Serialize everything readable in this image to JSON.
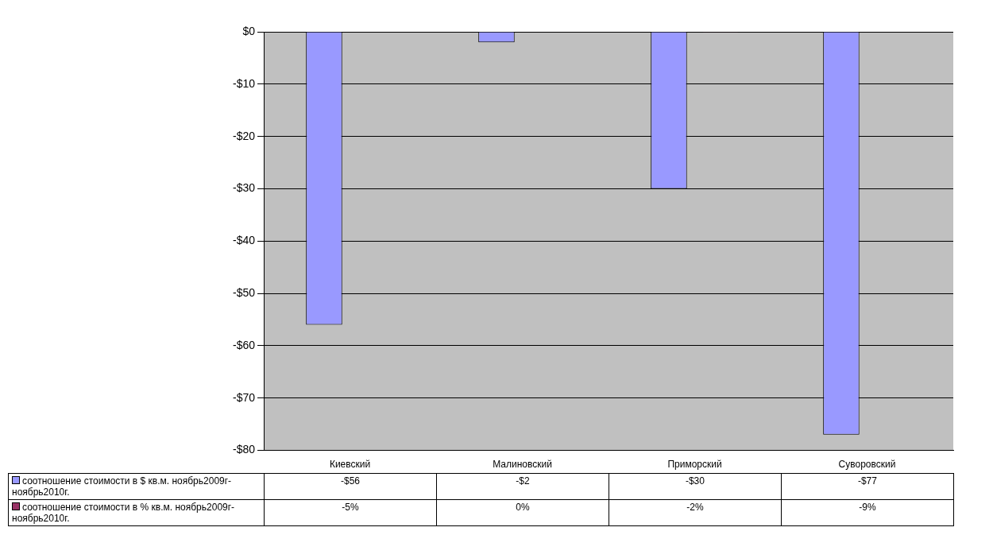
{
  "chart_data": {
    "type": "bar",
    "categories": [
      "Киевский",
      "Малиновский",
      "Приморский",
      "Суворовский"
    ],
    "series": [
      {
        "name": "соотношение стоимости в $ кв.м. ноябрь2009г-ноябрь2010г.",
        "color": "#9999ff",
        "values": [
          -56,
          -2,
          -30,
          -77
        ],
        "value_labels": [
          "-$56",
          "-$2",
          "-$30",
          "-$77"
        ]
      },
      {
        "name": "соотношение стоимости в % кв.м. ноябрь2009г-ноябрь2010г.",
        "color": "#993366",
        "values": [
          -0.05,
          0,
          -0.02,
          -0.09
        ],
        "value_labels": [
          "-5%",
          "0%",
          "-2%",
          "-9%"
        ]
      }
    ],
    "ylim": [
      -80,
      0
    ],
    "yticks": [
      {
        "value": 0,
        "label": "$0"
      },
      {
        "value": -10,
        "label": "-$10"
      },
      {
        "value": -20,
        "label": "-$20"
      },
      {
        "value": -30,
        "label": "-$30"
      },
      {
        "value": -40,
        "label": "-$40"
      },
      {
        "value": -50,
        "label": "-$50"
      },
      {
        "value": -60,
        "label": "-$60"
      },
      {
        "value": -70,
        "label": "-$70"
      },
      {
        "value": -80,
        "label": "-$80"
      }
    ],
    "grid": "y",
    "legend": "bottom left"
  }
}
